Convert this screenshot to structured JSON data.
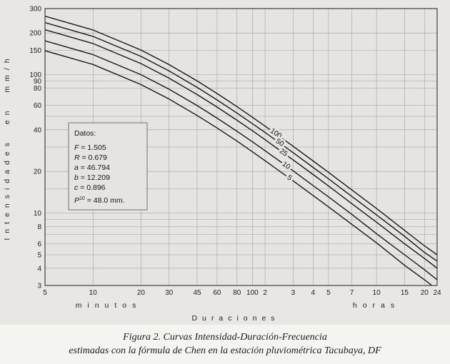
{
  "figure": {
    "caption_line1": "Figura 2. Curvas Intensidad-Duración-Frecuencia",
    "caption_line2": "estimadas con la fórmula de Chen en la estación pluviométrica Tacubaya, DF"
  },
  "chart_data": {
    "type": "line",
    "title": "Curvas Intensidad-Duración-Frecuencia",
    "x_scale": "log",
    "y_scale": "log",
    "grid": true,
    "xlabel": "Duraciones",
    "x_unit_left": "minutos",
    "x_unit_right": "horas",
    "ylabel": "Intensidades en mm/h",
    "ylim": [
      3,
      300
    ],
    "xlim_minutes": [
      5,
      1440
    ],
    "y_tick_labels": [
      300,
      200,
      150,
      100,
      90,
      80,
      60,
      40,
      20,
      10,
      8,
      6,
      5,
      4,
      3
    ],
    "y_gridlines": [
      3,
      4,
      5,
      6,
      7,
      8,
      9,
      10,
      15,
      20,
      30,
      40,
      50,
      60,
      80,
      90,
      100,
      150,
      200,
      300
    ],
    "x_ticks": [
      {
        "t_min": 5,
        "label": "5"
      },
      {
        "t_min": 10,
        "label": "10"
      },
      {
        "t_min": 20,
        "label": "20"
      },
      {
        "t_min": 30,
        "label": "30"
      },
      {
        "t_min": 45,
        "label": "45"
      },
      {
        "t_min": 60,
        "label": "60"
      },
      {
        "t_min": 80,
        "label": "80"
      },
      {
        "t_min": 100,
        "label": "100"
      },
      {
        "t_min": 120,
        "label": "2"
      },
      {
        "t_min": 180,
        "label": "3"
      },
      {
        "t_min": 240,
        "label": "4"
      },
      {
        "t_min": 300,
        "label": "5"
      },
      {
        "t_min": 420,
        "label": "7"
      },
      {
        "t_min": 600,
        "label": "10"
      },
      {
        "t_min": 900,
        "label": "15"
      },
      {
        "t_min": 1200,
        "label": "20"
      },
      {
        "t_min": 1440,
        "label": "24"
      }
    ],
    "x_minutes": [
      5,
      10,
      20,
      30,
      45,
      60,
      80,
      100,
      120,
      180,
      240,
      300,
      420,
      600,
      900,
      1200,
      1440
    ],
    "series": [
      {
        "name": "100",
        "return_period_years": 100,
        "label_t_min": 138,
        "values": [
          264.1,
          210.1,
          150.6,
          118.2,
          90.0,
          73.1,
          58.7,
          49.2,
          42.5,
          30.4,
          23.8,
          19.7,
          14.7,
          10.8,
          7.5,
          5.8,
          5.0
        ]
      },
      {
        "name": "50",
        "return_period_years": 50,
        "label_t_min": 146,
        "values": [
          237.4,
          188.9,
          135.4,
          106.3,
          80.9,
          65.7,
          52.8,
          44.2,
          38.2,
          27.3,
          21.4,
          17.7,
          13.2,
          9.7,
          6.8,
          5.2,
          4.5
        ]
      },
      {
        "name": "25",
        "return_period_years": 25,
        "label_t_min": 154,
        "values": [
          210.8,
          167.7,
          120.2,
          94.3,
          71.8,
          58.3,
          46.8,
          39.3,
          33.9,
          24.2,
          19.0,
          15.7,
          11.7,
          8.6,
          6.0,
          4.7,
          4.0
        ]
      },
      {
        "name": "10",
        "return_period_years": 10,
        "label_t_min": 160,
        "values": [
          175.5,
          139.6,
          100.0,
          78.5,
          59.8,
          48.5,
          39.0,
          32.7,
          28.2,
          20.2,
          15.8,
          13.1,
          9.8,
          7.1,
          5.0,
          3.9,
          3.3
        ]
      },
      {
        "name": "5",
        "return_period_years": 5,
        "label_t_min": 168,
        "values": [
          148.8,
          118.4,
          84.8,
          66.6,
          50.7,
          41.2,
          33.1,
          27.7,
          23.9,
          17.1,
          13.4,
          11.1,
          8.3,
          6.1,
          4.2,
          3.3,
          2.8
        ]
      }
    ],
    "datos_box": {
      "title": "Datos:",
      "entries": [
        {
          "symbol": "F",
          "sup": "",
          "rest": " = 1.505"
        },
        {
          "symbol": "R",
          "sup": "",
          "rest": " = 0.679"
        },
        {
          "symbol": "a",
          "sup": "",
          "rest": " = 46.794"
        },
        {
          "symbol": "b",
          "sup": "",
          "rest": " = 12.209"
        },
        {
          "symbol": "c",
          "sup": "",
          "rest": " = 0.896"
        },
        {
          "symbol": "P",
          "sup": "10",
          "rest": " = 48.0 mm."
        }
      ]
    }
  }
}
